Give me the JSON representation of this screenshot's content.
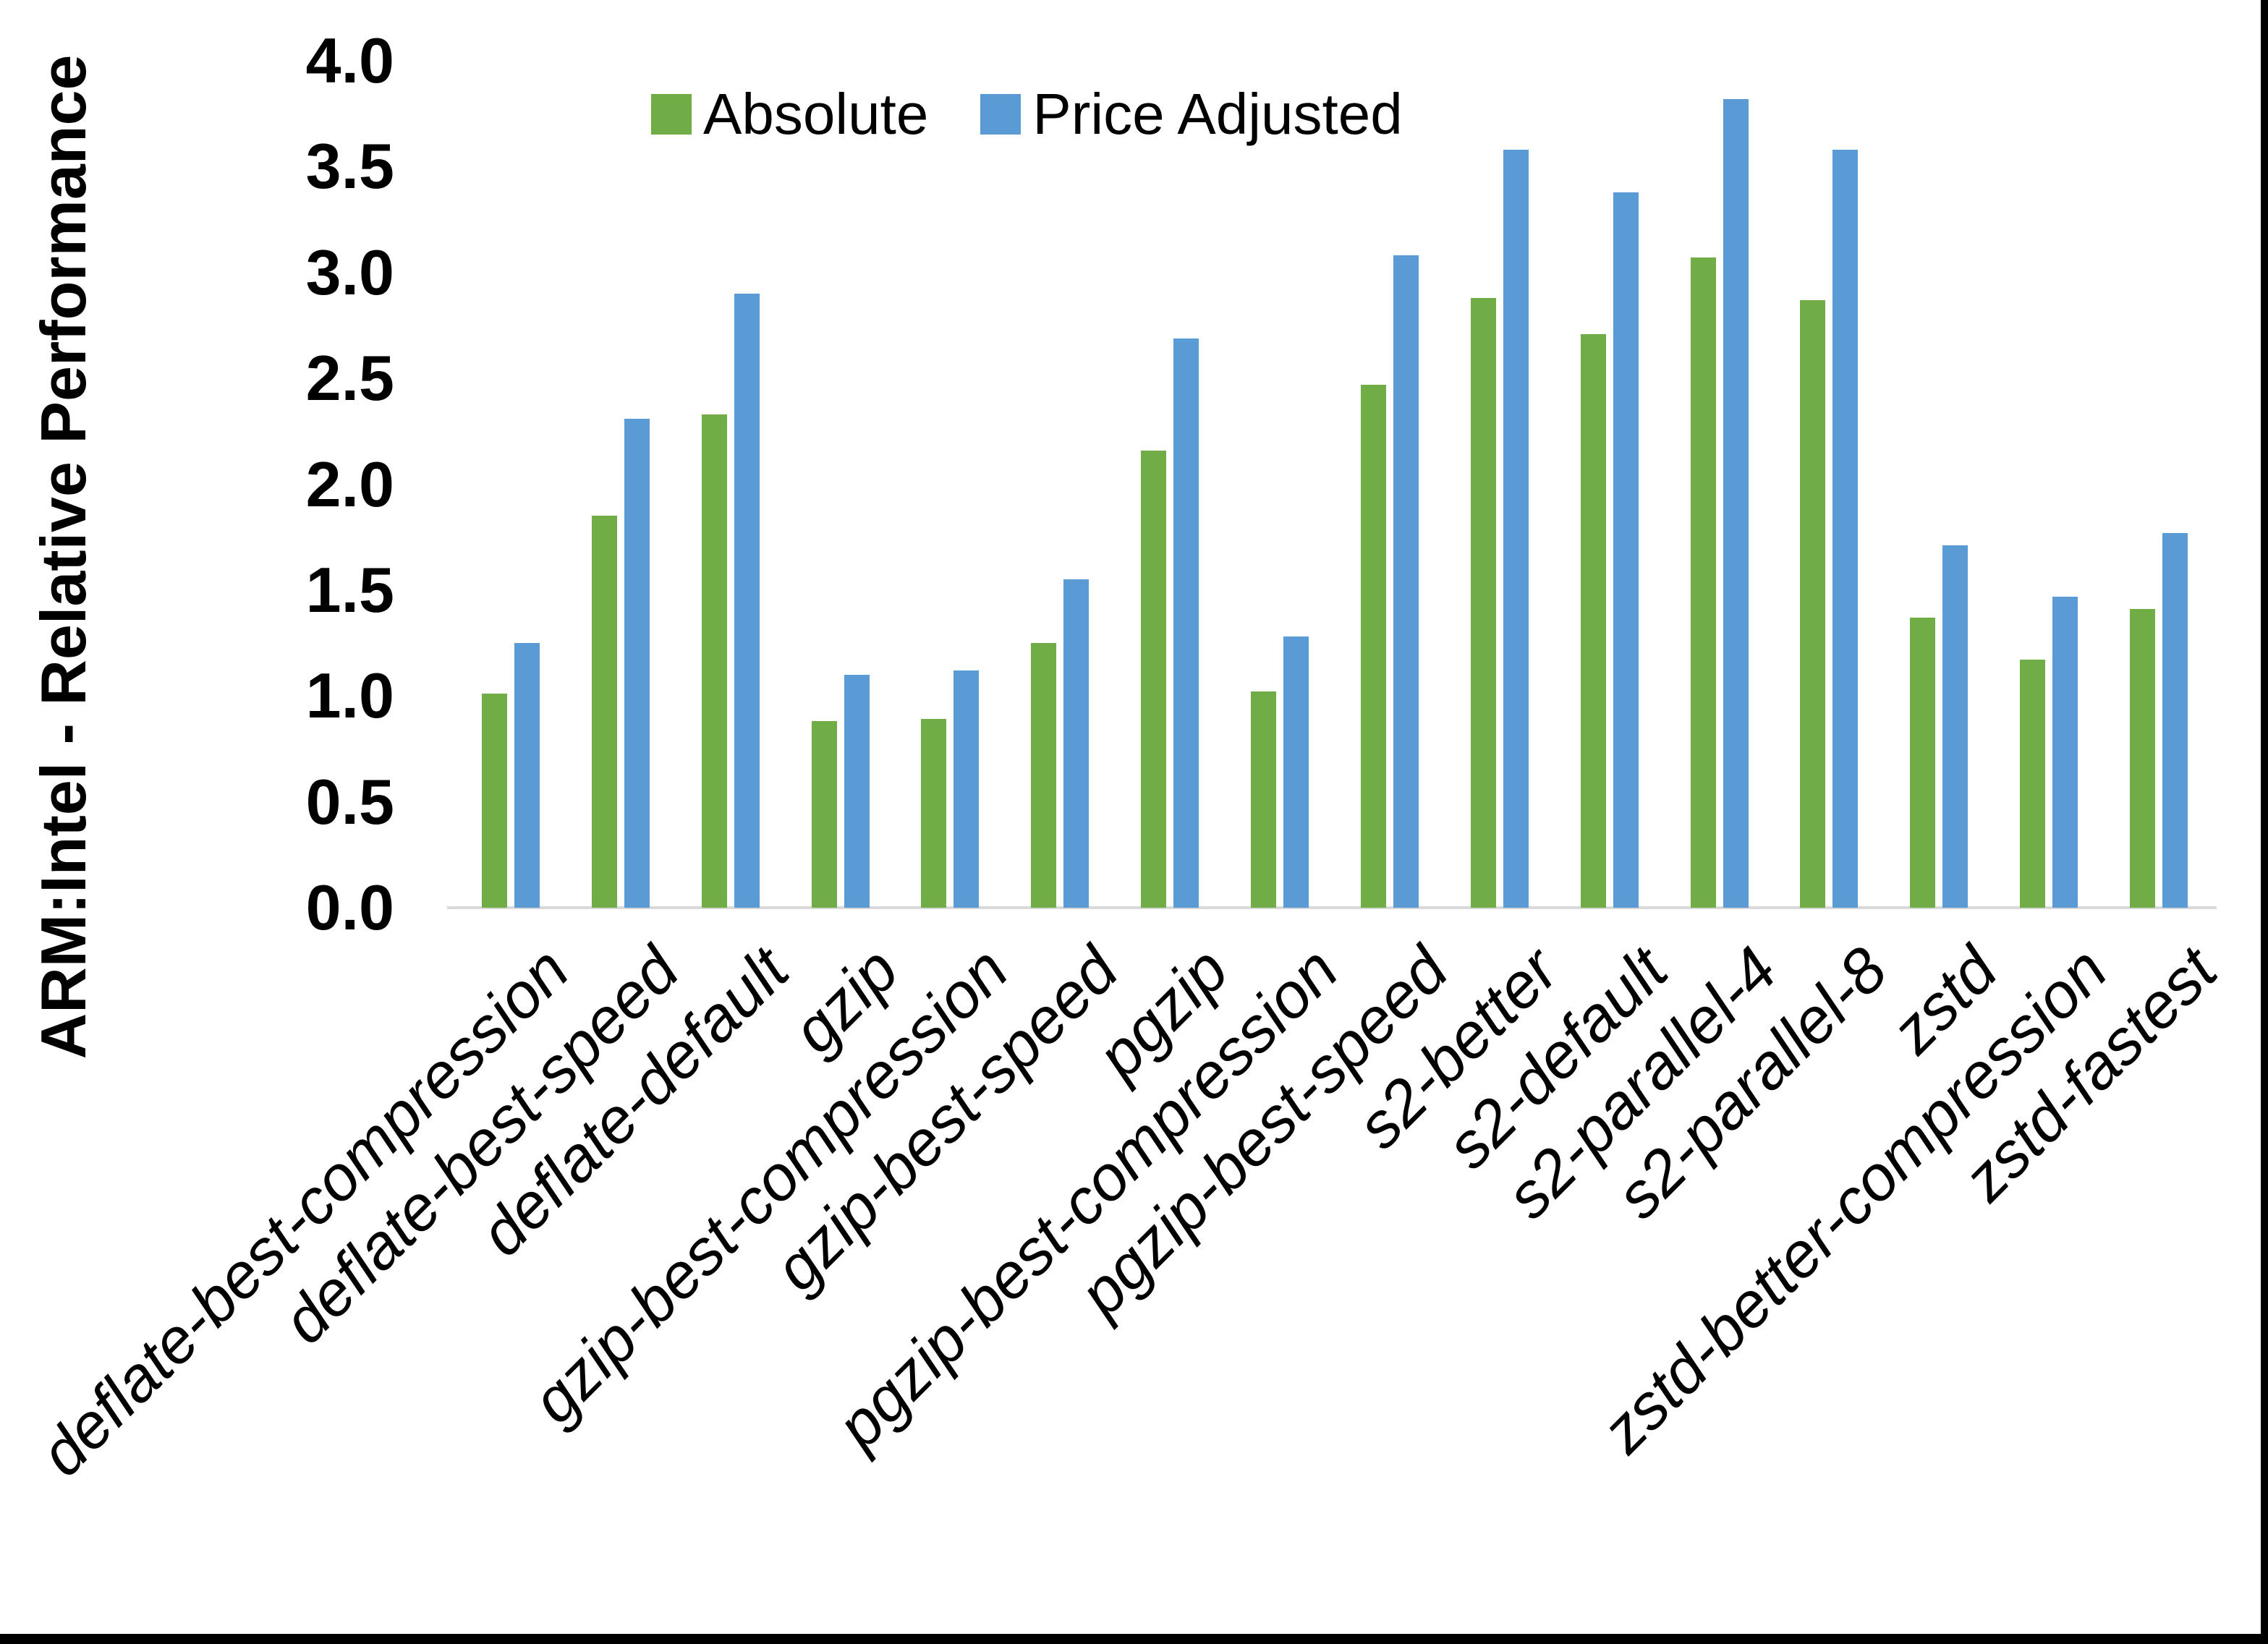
{
  "chart_data": {
    "type": "bar",
    "title": "",
    "ylabel": "ARM:Intel - Relative Performance",
    "xlabel": "",
    "ylim": [
      0.0,
      4.0
    ],
    "ytick_step": 0.5,
    "ytick_labels": [
      "0.0",
      "0.5",
      "1.0",
      "1.5",
      "2.0",
      "2.5",
      "3.0",
      "3.5",
      "4.0"
    ],
    "grid": false,
    "legend_position": "top-center",
    "axis_line_color": "#D9D9D9",
    "categories": [
      "deflate-best-compression",
      "deflate-best-speed",
      "deflate-default",
      "gzip",
      "gzip-best-compression",
      "gzip-best-speed",
      "pgzip",
      "pgzip-best-compression",
      "pgzip-best-speed",
      "s2-better",
      "s2-default",
      "s2-parallel-4",
      "s2-parallel-8",
      "zstd",
      "zstd-better-compression",
      "zstd-fastest"
    ],
    "series": [
      {
        "name": "Absolute",
        "color": "#70AD47",
        "values": [
          1.01,
          1.85,
          2.33,
          0.88,
          0.89,
          1.25,
          2.16,
          1.02,
          2.47,
          2.88,
          2.71,
          3.07,
          2.87,
          1.37,
          1.17,
          1.41
        ]
      },
      {
        "name": "Price Adjusted",
        "color": "#5B9BD5",
        "values": [
          1.25,
          2.31,
          2.9,
          1.1,
          1.12,
          1.55,
          2.69,
          1.28,
          3.08,
          3.58,
          3.38,
          3.82,
          3.58,
          1.71,
          1.47,
          1.77
        ]
      }
    ]
  }
}
